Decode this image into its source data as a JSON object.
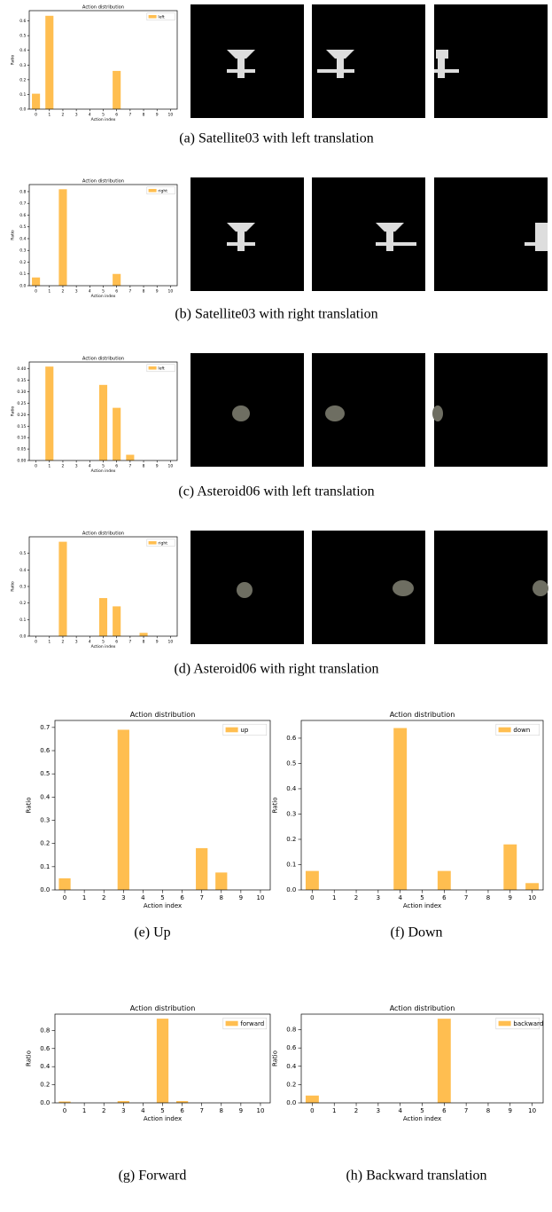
{
  "chart_data": [
    {
      "type": "bar",
      "title": "Action distribution",
      "xlabel": "Action index",
      "ylabel": "Ratio",
      "caption": "(a) Satellite03 with left translation",
      "categories": [
        "0",
        "1",
        "2",
        "3",
        "4",
        "5",
        "6",
        "7",
        "8",
        "9",
        "10"
      ],
      "color": "#ffbe50",
      "series": [
        {
          "name": "left",
          "color": "#ffbe50",
          "values": [
            0.105,
            0.635,
            0,
            0,
            0,
            0,
            0.26,
            0,
            0,
            0,
            0
          ]
        }
      ],
      "ylim": [
        0,
        0.67
      ],
      "yticks": [
        {
          "value": 0,
          "label": "0.0"
        },
        0.1,
        0.2,
        0.3,
        0.4,
        0.5,
        0.6
      ]
    },
    {
      "type": "bar",
      "title": "Action distribution",
      "xlabel": "Action index",
      "ylabel": "Ratio",
      "caption": "(b) Satellite03 with right translation",
      "categories": [
        "0",
        "1",
        "2",
        "3",
        "4",
        "5",
        "6",
        "7",
        "8",
        "9",
        "10"
      ],
      "color": "#ffbe50",
      "series": [
        {
          "name": "right",
          "color": "#ffbe50",
          "values": [
            0.07,
            0,
            0.82,
            0,
            0,
            0,
            0.1,
            0,
            0,
            0,
            0
          ]
        }
      ],
      "ylim": [
        0,
        0.86
      ],
      "yticks": [
        {
          "value": 0,
          "label": "0.0"
        },
        0.1,
        0.2,
        0.3,
        0.4,
        0.5,
        0.6,
        0.7,
        0.8
      ]
    },
    {
      "type": "bar",
      "title": "Action distribution",
      "xlabel": "Action index",
      "ylabel": "Ratio",
      "caption": "(c) Asteroid06 with left translation",
      "categories": [
        "0",
        "1",
        "2",
        "3",
        "4",
        "5",
        "6",
        "7",
        "8",
        "9",
        "10"
      ],
      "color": "#ffbe50",
      "series": [
        {
          "name": "left",
          "color": "#ffbe50",
          "values": [
            0,
            0.41,
            0,
            0,
            0,
            0.33,
            0.23,
            0.025,
            0,
            0,
            0
          ]
        }
      ],
      "ylim": [
        0,
        0.43
      ],
      "yticks": [
        {
          "value": 0,
          "label": "0.00"
        },
        {
          "value": 0.05,
          "label": "0.05"
        },
        {
          "value": 0.1,
          "label": "0.10"
        },
        {
          "value": 0.15,
          "label": "0.15"
        },
        {
          "value": 0.2,
          "label": "0.20"
        },
        {
          "value": 0.25,
          "label": "0.25"
        },
        {
          "value": 0.3,
          "label": "0.30"
        },
        {
          "value": 0.35,
          "label": "0.35"
        },
        {
          "value": 0.4,
          "label": "0.40"
        }
      ]
    },
    {
      "type": "bar",
      "title": "Action distribution",
      "xlabel": "Action index",
      "ylabel": "Ratio",
      "caption": "(d) Asteroid06 with right translation",
      "categories": [
        "0",
        "1",
        "2",
        "3",
        "4",
        "5",
        "6",
        "7",
        "8",
        "9",
        "10"
      ],
      "color": "#ffbe50",
      "series": [
        {
          "name": "right",
          "color": "#ffbe50",
          "values": [
            0,
            0,
            0.57,
            0,
            0,
            0.23,
            0.18,
            0,
            0.02,
            0,
            0
          ]
        }
      ],
      "ylim": [
        0,
        0.6
      ],
      "yticks": [
        {
          "value": 0,
          "label": "0.0"
        },
        0.1,
        0.2,
        0.3,
        0.4,
        0.5
      ]
    },
    {
      "type": "bar",
      "title": "Action distribution",
      "xlabel": "Action index",
      "ylabel": "Ratio",
      "caption": "(e) Up",
      "categories": [
        "0",
        "1",
        "2",
        "3",
        "4",
        "5",
        "6",
        "7",
        "8",
        "9",
        "10"
      ],
      "color": "#ffbe50",
      "series": [
        {
          "name": "up",
          "color": "#ffbe50",
          "values": [
            0.05,
            0,
            0,
            0.69,
            0,
            0,
            0,
            0.18,
            0.075,
            0,
            0
          ]
        }
      ],
      "ylim": [
        0,
        0.73
      ],
      "yticks": [
        {
          "value": 0,
          "label": "0.0"
        },
        0.1,
        0.2,
        0.3,
        0.4,
        0.5,
        0.6,
        0.7
      ]
    },
    {
      "type": "bar",
      "title": "Action distribution",
      "xlabel": "Action index",
      "ylabel": "Ratio",
      "caption": "(f) Down",
      "categories": [
        "0",
        "1",
        "2",
        "3",
        "4",
        "5",
        "6",
        "7",
        "8",
        "9",
        "10"
      ],
      "color": "#ffbe50",
      "series": [
        {
          "name": "down",
          "color": "#ffbe50",
          "values": [
            0.075,
            0,
            0,
            0,
            0.64,
            0,
            0.075,
            0,
            0,
            0.18,
            0.027
          ]
        }
      ],
      "ylim": [
        0,
        0.67
      ],
      "yticks": [
        {
          "value": 0,
          "label": "0.0"
        },
        0.1,
        0.2,
        0.3,
        0.4,
        0.5,
        0.6
      ]
    },
    {
      "type": "bar",
      "title": "Action distribution",
      "xlabel": "Action index",
      "ylabel": "Ratio",
      "caption": "(g) Forward",
      "categories": [
        "0",
        "1",
        "2",
        "3",
        "4",
        "5",
        "6",
        "7",
        "8",
        "9",
        "10"
      ],
      "color": "#ffbe50",
      "series": [
        {
          "name": "forward",
          "color": "#ffbe50",
          "values": [
            0.015,
            0,
            0,
            0.02,
            0,
            0.93,
            0.02,
            0,
            0,
            0,
            0
          ]
        }
      ],
      "ylim": [
        0,
        0.98
      ],
      "yticks": [
        {
          "value": 0,
          "label": "0.0"
        },
        0.2,
        0.4,
        0.6,
        0.8
      ]
    },
    {
      "type": "bar",
      "title": "Action distribution",
      "xlabel": "Action index",
      "ylabel": "Ratio",
      "caption": "(h) Backward translation",
      "categories": [
        "0",
        "1",
        "2",
        "3",
        "4",
        "5",
        "6",
        "7",
        "8",
        "9",
        "10"
      ],
      "color": "#ffbe50",
      "series": [
        {
          "name": "backward",
          "color": "#ffbe50",
          "values": [
            0.08,
            0,
            0,
            0,
            0,
            0,
            0.92,
            0,
            0,
            0,
            0
          ]
        }
      ],
      "ylim": [
        0,
        0.97
      ],
      "yticks": [
        {
          "value": 0,
          "label": "0.0"
        },
        0.2,
        0.4,
        0.6,
        0.8
      ]
    }
  ]
}
